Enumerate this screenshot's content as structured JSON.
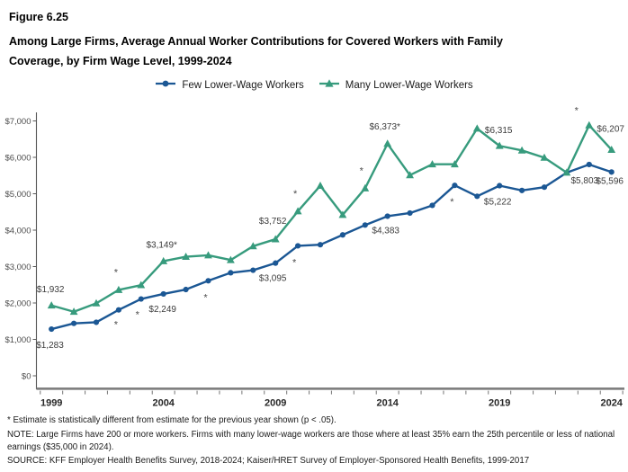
{
  "figure": {
    "number": "Figure 6.25",
    "title_lines": [
      "Among Large Firms, Average Annual Worker Contributions for Covered Workers with Family",
      "Coverage, by Firm Wage Level, 1999-2024"
    ]
  },
  "footnotes": {
    "significance": "* Estimate is statistically different from estimate for the previous year shown (p < .05).",
    "note": "NOTE: Large Firms have 200 or more workers. Firms with many lower-wage workers are those where at least 35% earn the 25th percentile or less of national earnings ($35,000 in 2024).",
    "source": "SOURCE: KFF Employer Health Benefits Survey, 2018-2024; Kaiser/HRET Survey of Employer-Sponsored Health Benefits, 1999-2017"
  },
  "chart_data": {
    "type": "line",
    "title": "Among Large Firms, Average Annual Worker Contributions for Covered Workers with Family Coverage, by Firm Wage Level, 1999-2024",
    "x": [
      1999,
      2000,
      2001,
      2002,
      2003,
      2004,
      2005,
      2006,
      2007,
      2008,
      2009,
      2010,
      2011,
      2012,
      2013,
      2014,
      2015,
      2016,
      2017,
      2018,
      2019,
      2020,
      2021,
      2022,
      2023,
      2024
    ],
    "x_tick_years": [
      1999,
      2004,
      2009,
      2014,
      2019,
      2024
    ],
    "y_tick_labels": [
      "$0",
      "$1,000",
      "$2,000",
      "$3,000",
      "$4,000",
      "$5,000",
      "$6,000",
      "$7,000"
    ],
    "ylim": [
      0,
      7000
    ],
    "grid": false,
    "legend_position": "top",
    "colors": {
      "few_lower_wage": "#1B5794",
      "many_lower_wage": "#379B7D",
      "axis": "#808080",
      "tick_text": "#4D4D4D"
    },
    "series": [
      {
        "name": "Few Lower-Wage Workers",
        "color": "#1B5794",
        "marker": "circle",
        "values": [
          1283,
          1440,
          1470,
          1810,
          2110,
          2249,
          2370,
          2610,
          2830,
          2900,
          3095,
          3570,
          3600,
          3870,
          4140,
          4383,
          4470,
          4680,
          5230,
          4930,
          5222,
          5090,
          5180,
          5580,
          5803,
          5596
        ],
        "point_labels": [
          {
            "year": 1999,
            "text": "$1,283",
            "dx": -17,
            "dy": 21,
            "anchor": "start"
          },
          {
            "year": 2004,
            "text": "$2,249",
            "dx": -1,
            "dy": 20
          },
          {
            "year": 2009,
            "text": "$3,095",
            "dx": -3,
            "dy": 20
          },
          {
            "year": 2014,
            "text": "$4,383",
            "dx": -2,
            "dy": 19
          },
          {
            "year": 2019,
            "text": "$5,222",
            "dx": -2,
            "dy": 21
          },
          {
            "year": 2023,
            "text": "$5,803",
            "dx": -5,
            "dy": 21
          },
          {
            "year": 2024,
            "text": "$5,596",
            "dx": -2,
            "dy": 13
          }
        ],
        "asterisks": [
          {
            "year": 2002,
            "dx": -3,
            "dy": 20
          },
          {
            "year": 2003,
            "dx": -4,
            "dy": 21
          },
          {
            "year": 2006,
            "dx": -3,
            "dy": 22
          },
          {
            "year": 2010,
            "dx": -4,
            "dy": 22
          },
          {
            "year": 2017,
            "dx": -3,
            "dy": 22
          }
        ]
      },
      {
        "name": "Many Lower-Wage Workers",
        "color": "#379B7D",
        "marker": "triangle",
        "values": [
          1932,
          1760,
          1990,
          2360,
          2490,
          3149,
          3270,
          3310,
          3180,
          3560,
          3752,
          4520,
          5220,
          4420,
          5150,
          6373,
          5510,
          5810,
          5810,
          6790,
          6315,
          6190,
          5990,
          5580,
          6880,
          6207
        ],
        "point_labels": [
          {
            "year": 1999,
            "text": "$1,932",
            "dx": -1,
            "dy": -15
          },
          {
            "year": 2004,
            "text": "$3,149*",
            "dx": -2,
            "dy": -15
          },
          {
            "year": 2009,
            "text": "$3,752",
            "dx": -3,
            "dy": -17
          },
          {
            "year": 2014,
            "text": "$6,373*",
            "dx": -3,
            "dy": -16
          },
          {
            "year": 2019,
            "text": "$6,315",
            "dx": -1,
            "dy": -14
          },
          {
            "year": 2024,
            "text": "$6,207",
            "dx": -1,
            "dy": -20
          }
        ],
        "asterisks": [
          {
            "year": 2002,
            "dx": -3,
            "dy": -16
          },
          {
            "year": 2010,
            "dx": -3,
            "dy": -16
          },
          {
            "year": 2013,
            "dx": -4,
            "dy": -16
          },
          {
            "year": 2023,
            "dx": -14,
            "dy": -13
          }
        ]
      }
    ]
  }
}
